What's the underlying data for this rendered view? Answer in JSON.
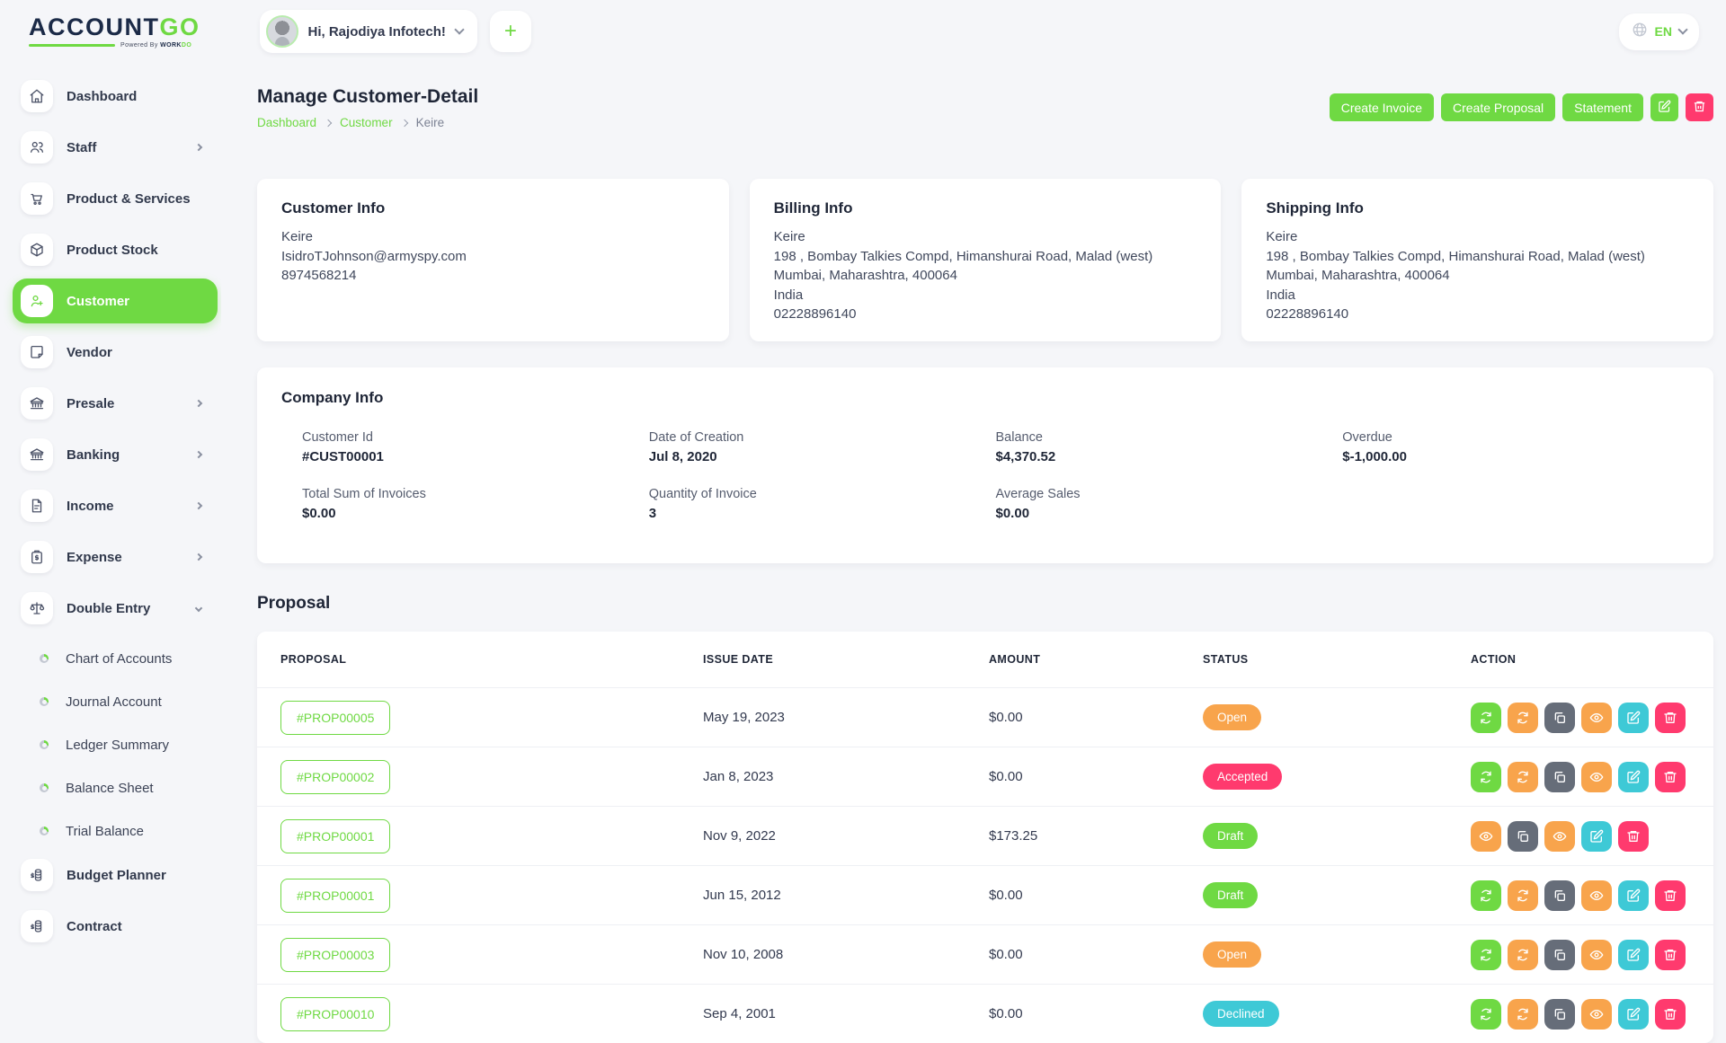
{
  "brand": {
    "name_primary": "ACCOUNT",
    "name_secondary": "GO",
    "powered_prefix": "Powered By ",
    "powered_brand": "WORK",
    "powered_brand2": "DO"
  },
  "header": {
    "greeting": "Hi, Rajodiya Infotech!",
    "add_label": "+",
    "language": "EN"
  },
  "colors": {
    "accent": "#6fd943",
    "danger": "#ff3a6e",
    "warning": "#f8a44c",
    "info": "#3ec9d6",
    "muted": "#666d79"
  },
  "sidebar": {
    "items": [
      {
        "label": "Dashboard",
        "icon": "home-icon",
        "chevron": false,
        "active": false
      },
      {
        "label": "Staff",
        "icon": "users-icon",
        "chevron": true,
        "active": false
      },
      {
        "label": "Product & Services",
        "icon": "cart-icon",
        "chevron": false,
        "active": false
      },
      {
        "label": "Product Stock",
        "icon": "box-icon",
        "chevron": false,
        "active": false
      },
      {
        "label": "Customer",
        "icon": "user-plus-icon",
        "chevron": false,
        "active": true
      },
      {
        "label": "Vendor",
        "icon": "note-icon",
        "chevron": false,
        "active": false
      },
      {
        "label": "Presale",
        "icon": "bank-icon",
        "chevron": true,
        "active": false
      },
      {
        "label": "Banking",
        "icon": "bank-icon",
        "chevron": true,
        "active": false
      },
      {
        "label": "Income",
        "icon": "file-icon",
        "chevron": true,
        "active": false
      },
      {
        "label": "Expense",
        "icon": "clipboard-icon",
        "chevron": true,
        "active": false
      },
      {
        "label": "Double Entry",
        "icon": "scales-icon",
        "chevron": true,
        "active": false,
        "expanded": true
      }
    ],
    "sub_items": [
      "Chart of Accounts",
      "Journal Account",
      "Ledger Summary",
      "Balance Sheet",
      "Trial Balance"
    ],
    "items_after": [
      {
        "label": "Budget Planner",
        "icon": "coins-icon",
        "chevron": false,
        "active": false
      },
      {
        "label": "Contract",
        "icon": "coins-icon",
        "chevron": false,
        "active": false
      }
    ]
  },
  "page": {
    "title": "Manage Customer-Detail",
    "breadcrumb": [
      "Dashboard",
      "Customer",
      "Keire"
    ],
    "actions": {
      "create_invoice": "Create Invoice",
      "create_proposal": "Create Proposal",
      "statement": "Statement"
    }
  },
  "cards": {
    "customer_info": {
      "title": "Customer Info",
      "lines": [
        "Keire",
        "IsidroTJohnson@armyspy.com",
        "8974568214"
      ]
    },
    "billing_info": {
      "title": "Billing Info",
      "lines": [
        "Keire",
        "198 , Bombay Talkies Compd, Himanshurai Road, Malad (west)",
        "Mumbai, Maharashtra, 400064",
        "India",
        "02228896140"
      ]
    },
    "shipping_info": {
      "title": "Shipping Info",
      "lines": [
        "Keire",
        "198 , Bombay Talkies Compd, Himanshurai Road, Malad (west)",
        "Mumbai, Maharashtra, 400064",
        "India",
        "02228896140"
      ]
    },
    "company_info": {
      "title": "Company Info",
      "fields": [
        {
          "label": "Customer Id",
          "value": "#CUST00001"
        },
        {
          "label": "Date of Creation",
          "value": "Jul 8, 2020"
        },
        {
          "label": "Balance",
          "value": "$4,370.52"
        },
        {
          "label": "Overdue",
          "value": "$-1,000.00"
        },
        {
          "label": "Total Sum of Invoices",
          "value": "$0.00"
        },
        {
          "label": "Quantity of Invoice",
          "value": "3"
        },
        {
          "label": "Average Sales",
          "value": "$0.00"
        }
      ]
    }
  },
  "proposal": {
    "title": "Proposal",
    "columns": [
      "PROPOSAL",
      "ISSUE DATE",
      "AMOUNT",
      "STATUS",
      "ACTION"
    ],
    "rows": [
      {
        "id": "#PROP00005",
        "issue_date": "May 19, 2023",
        "amount": "$0.00",
        "status": "Open",
        "status_class": "b-open",
        "actions": [
          {
            "icon": "refresh-icon",
            "color": "c-green"
          },
          {
            "icon": "refresh-icon",
            "color": "c-orange"
          },
          {
            "icon": "copy-icon",
            "color": "c-gray"
          },
          {
            "icon": "eye-icon",
            "color": "c-orange"
          },
          {
            "icon": "edit-icon",
            "color": "c-teal"
          },
          {
            "icon": "trash-icon",
            "color": "c-pink"
          }
        ]
      },
      {
        "id": "#PROP00002",
        "issue_date": "Jan 8, 2023",
        "amount": "$0.00",
        "status": "Accepted",
        "status_class": "b-accepted",
        "actions": [
          {
            "icon": "refresh-icon",
            "color": "c-green"
          },
          {
            "icon": "refresh-icon",
            "color": "c-orange"
          },
          {
            "icon": "copy-icon",
            "color": "c-gray"
          },
          {
            "icon": "eye-icon",
            "color": "c-orange"
          },
          {
            "icon": "edit-icon",
            "color": "c-teal"
          },
          {
            "icon": "trash-icon",
            "color": "c-pink"
          }
        ]
      },
      {
        "id": "#PROP00001",
        "issue_date": "Nov 9, 2022",
        "amount": "$173.25",
        "status": "Draft",
        "status_class": "b-draft",
        "actions": [
          {
            "icon": "eye-icon",
            "color": "c-orange"
          },
          {
            "icon": "copy-icon",
            "color": "c-gray"
          },
          {
            "icon": "eye-icon",
            "color": "c-orange"
          },
          {
            "icon": "edit-icon",
            "color": "c-teal"
          },
          {
            "icon": "trash-icon",
            "color": "c-pink"
          }
        ]
      },
      {
        "id": "#PROP00001",
        "issue_date": "Jun 15, 2012",
        "amount": "$0.00",
        "status": "Draft",
        "status_class": "b-draft",
        "actions": [
          {
            "icon": "refresh-icon",
            "color": "c-green"
          },
          {
            "icon": "refresh-icon",
            "color": "c-orange"
          },
          {
            "icon": "copy-icon",
            "color": "c-gray"
          },
          {
            "icon": "eye-icon",
            "color": "c-orange"
          },
          {
            "icon": "edit-icon",
            "color": "c-teal"
          },
          {
            "icon": "trash-icon",
            "color": "c-pink"
          }
        ]
      },
      {
        "id": "#PROP00003",
        "issue_date": "Nov 10, 2008",
        "amount": "$0.00",
        "status": "Open",
        "status_class": "b-open",
        "actions": [
          {
            "icon": "refresh-icon",
            "color": "c-green"
          },
          {
            "icon": "refresh-icon",
            "color": "c-orange"
          },
          {
            "icon": "copy-icon",
            "color": "c-gray"
          },
          {
            "icon": "eye-icon",
            "color": "c-orange"
          },
          {
            "icon": "edit-icon",
            "color": "c-teal"
          },
          {
            "icon": "trash-icon",
            "color": "c-pink"
          }
        ]
      },
      {
        "id": "#PROP00010",
        "issue_date": "Sep 4, 2001",
        "amount": "$0.00",
        "status": "Declined",
        "status_class": "b-declined",
        "actions": [
          {
            "icon": "refresh-icon",
            "color": "c-green"
          },
          {
            "icon": "refresh-icon",
            "color": "c-orange"
          },
          {
            "icon": "copy-icon",
            "color": "c-gray"
          },
          {
            "icon": "eye-icon",
            "color": "c-orange"
          },
          {
            "icon": "edit-icon",
            "color": "c-teal"
          },
          {
            "icon": "trash-icon",
            "color": "c-pink"
          }
        ]
      }
    ]
  }
}
